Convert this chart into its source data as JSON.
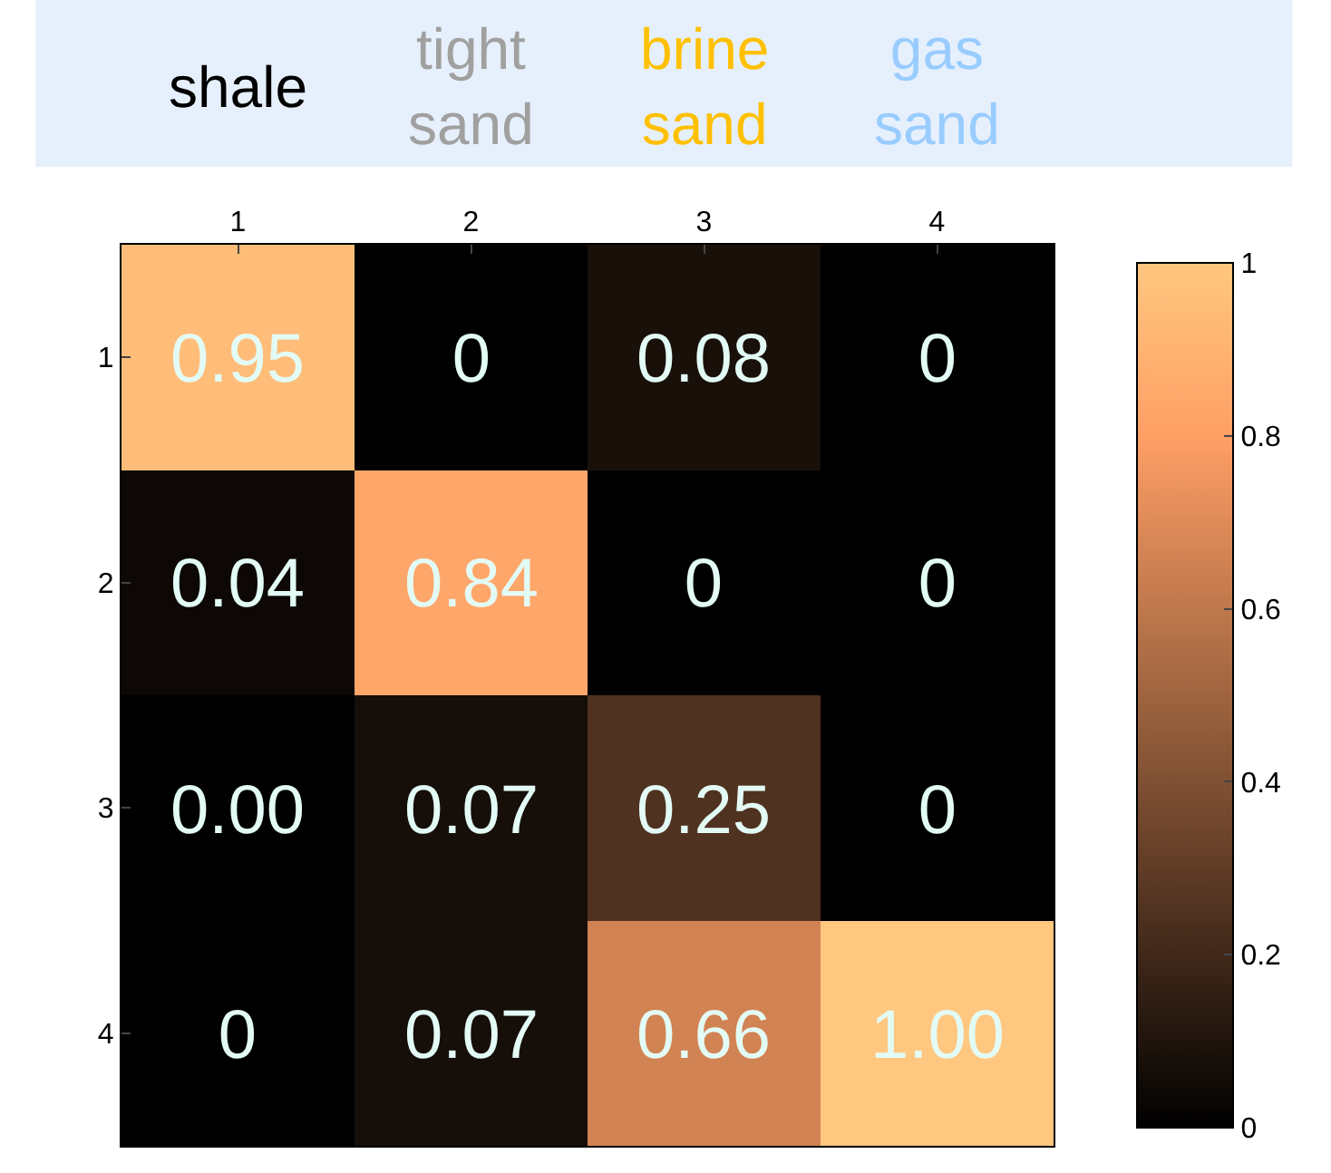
{
  "chart_data": {
    "type": "heatmap",
    "categories": [
      "1",
      "2",
      "3",
      "4"
    ],
    "y_categories": [
      "1",
      "2",
      "3",
      "4"
    ],
    "cells": [
      [
        0.95,
        0,
        0.08,
        0
      ],
      [
        0.04,
        0.84,
        0,
        0
      ],
      [
        0.0,
        0.07,
        0.25,
        0
      ],
      [
        0,
        0.07,
        0.66,
        1.0
      ]
    ],
    "cell_labels": [
      [
        "0.95",
        "0",
        "0.08",
        "0"
      ],
      [
        "0.04",
        "0.84",
        "0",
        "0"
      ],
      [
        "0.00",
        "0.07",
        "0.25",
        "0"
      ],
      [
        "0",
        "0.07",
        "0.66",
        "1.00"
      ]
    ],
    "clim": [
      0,
      1
    ],
    "cticks": [
      0,
      0.2,
      0.4,
      0.6,
      0.8,
      1
    ],
    "annotations": [
      "shale",
      "tight sand",
      "brine sand",
      "gas sand"
    ]
  }
}
